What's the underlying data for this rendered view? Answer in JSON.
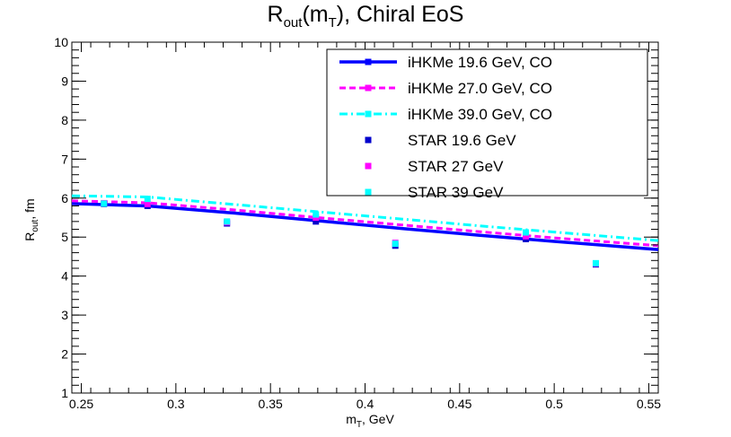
{
  "chart_data": {
    "type": "line",
    "title": {
      "base": "R",
      "sub": "out",
      "mid": "(m",
      "sub2": "T",
      "end": "), Chiral EoS"
    },
    "xlabel": {
      "base": "m",
      "sub": "T",
      "end": ", GeV"
    },
    "ylabel": {
      "base": "R",
      "sub": "out",
      "end": ", fm"
    },
    "xlim": [
      0.245,
      0.555
    ],
    "ylim": [
      1,
      10
    ],
    "x_ticks": [
      0.25,
      0.3,
      0.35,
      0.4,
      0.45,
      0.5,
      0.55
    ],
    "x_tick_labels": [
      "0.25",
      "0.3",
      "0.35",
      "0.4",
      "0.45",
      "0.5",
      "0.55"
    ],
    "y_ticks": [
      1,
      2,
      3,
      4,
      5,
      6,
      7,
      8,
      9,
      10
    ],
    "y_tick_labels": [
      "1",
      "2",
      "3",
      "4",
      "5",
      "6",
      "7",
      "8",
      "9",
      "10"
    ],
    "grid": false,
    "legend_position": "top-right",
    "line_series": [
      {
        "name": "iHKMe 19.6 GeV, CO",
        "color": "#0000ff",
        "dash": "solid",
        "width": 3.5,
        "x": [
          0.245,
          0.285,
          0.33,
          0.375,
          0.42,
          0.46,
          0.5,
          0.555
        ],
        "y": [
          5.86,
          5.8,
          5.62,
          5.42,
          5.22,
          5.05,
          4.89,
          4.68
        ]
      },
      {
        "name": "iHKMe 27.0 GeV, CO",
        "color": "#ff00ff",
        "dash": "dashed",
        "width": 3,
        "x": [
          0.245,
          0.285,
          0.33,
          0.375,
          0.42,
          0.46,
          0.5,
          0.555
        ],
        "y": [
          5.93,
          5.88,
          5.7,
          5.5,
          5.31,
          5.14,
          4.98,
          4.78
        ]
      },
      {
        "name": "iHKMe 39.0 GeV, CO",
        "color": "#00ffff",
        "dash": "dashdot",
        "width": 3,
        "x": [
          0.245,
          0.285,
          0.33,
          0.375,
          0.42,
          0.46,
          0.5,
          0.555
        ],
        "y": [
          6.06,
          6.03,
          5.84,
          5.65,
          5.46,
          5.29,
          5.13,
          4.91
        ]
      }
    ],
    "marker_series": [
      {
        "name": "STAR 19.6 GeV",
        "color": "#0000cc",
        "x": [
          0.262,
          0.285,
          0.327,
          0.374,
          0.416,
          0.485,
          0.522
        ],
        "y": [
          5.85,
          5.8,
          5.35,
          5.4,
          4.78,
          4.95,
          4.3
        ]
      },
      {
        "name": "STAR 27 GeV",
        "color": "#ff00ff",
        "x": [
          0.262,
          0.285,
          0.327,
          0.374,
          0.416,
          0.485,
          0.522
        ],
        "y": [
          5.87,
          5.85,
          5.38,
          5.5,
          4.85,
          5.02,
          4.32
        ]
      },
      {
        "name": "STAR 39 GeV",
        "color": "#00ffff",
        "x": [
          0.262,
          0.285,
          0.327,
          0.374,
          0.416,
          0.485,
          0.522
        ],
        "y": [
          5.86,
          5.98,
          5.4,
          5.58,
          4.83,
          5.12,
          4.33
        ]
      }
    ]
  }
}
